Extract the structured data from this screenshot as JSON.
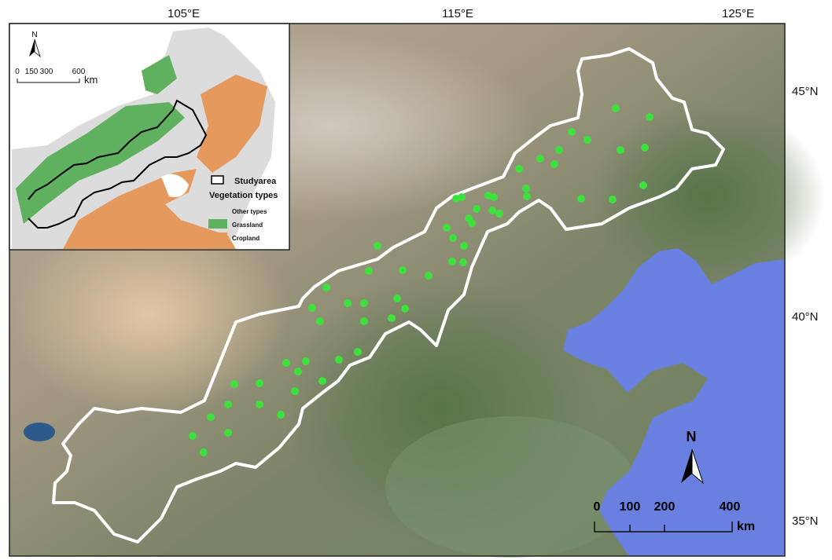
{
  "axes": {
    "longitude_labels": [
      "105°E",
      "115°E",
      "125°E"
    ],
    "latitude_labels": [
      "45°N",
      "40°N",
      "35°N"
    ]
  },
  "main_map": {
    "north_arrow_label": "N",
    "scale_bar": {
      "ticks": [
        "0",
        "100",
        "200",
        "400"
      ],
      "unit": "km"
    },
    "colors": {
      "study_area_outline": "#ffffff",
      "sample_sites": "#3ee03e",
      "sea": "#6a80e0"
    }
  },
  "inset": {
    "north_arrow_label": "N",
    "scale_bar": {
      "ticks": [
        "0",
        "150",
        "300",
        "600"
      ],
      "unit": "km"
    },
    "legend": {
      "study_area": "Studyarea",
      "heading": "Vegetation types",
      "items": [
        {
          "label": "Other types",
          "color": "#dcdcdc"
        },
        {
          "label": "Grassland",
          "color": "#5fb160"
        },
        {
          "label": "Cropland",
          "color": "#e5995c"
        }
      ]
    }
  }
}
